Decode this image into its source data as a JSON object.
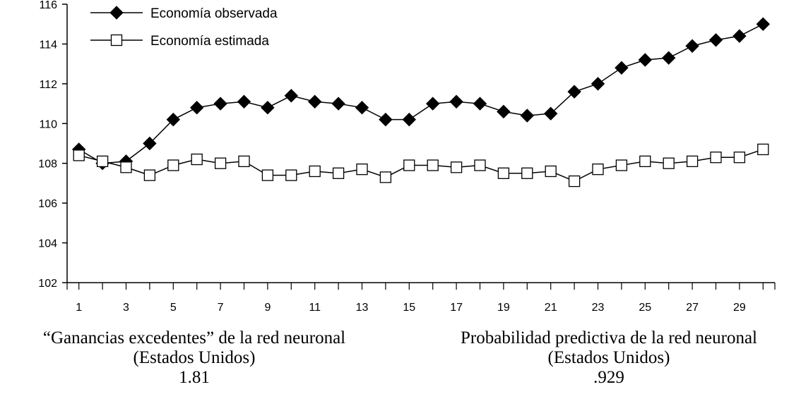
{
  "chart_data": {
    "type": "line",
    "x": [
      1,
      2,
      3,
      4,
      5,
      6,
      7,
      8,
      9,
      10,
      11,
      12,
      13,
      14,
      15,
      16,
      17,
      18,
      19,
      20,
      21,
      22,
      23,
      24,
      25,
      26,
      27,
      28,
      29,
      30
    ],
    "x_tick_labels": [
      "1",
      "3",
      "5",
      "7",
      "9",
      "11",
      "13",
      "15",
      "17",
      "19",
      "21",
      "23",
      "25",
      "27",
      "29"
    ],
    "y_tick_labels": [
      "102",
      "104",
      "106",
      "108",
      "110",
      "112",
      "114",
      "116"
    ],
    "ylim": [
      102,
      116
    ],
    "xlim": [
      0.5,
      30.5
    ],
    "grid": false,
    "legend_position": "top-left",
    "series": [
      {
        "name": "Economía observada",
        "marker": "filled-diamond",
        "values": [
          108.7,
          108.0,
          108.1,
          109.0,
          110.2,
          110.8,
          111.0,
          111.1,
          110.8,
          111.4,
          111.1,
          111.0,
          110.8,
          110.2,
          110.2,
          111.0,
          111.1,
          111.0,
          110.6,
          110.4,
          110.5,
          111.6,
          112.0,
          112.8,
          113.2,
          113.3,
          113.9,
          114.2,
          114.4,
          115.0
        ]
      },
      {
        "name": "Economía estimada",
        "marker": "open-square",
        "values": [
          108.4,
          108.1,
          107.8,
          107.4,
          107.9,
          108.2,
          108.0,
          108.1,
          107.4,
          107.4,
          107.6,
          107.5,
          107.7,
          107.3,
          107.9,
          107.9,
          107.8,
          107.9,
          107.5,
          107.5,
          107.6,
          107.1,
          107.7,
          107.9,
          108.1,
          108.0,
          108.1,
          108.3,
          108.3,
          108.7
        ]
      }
    ],
    "colors": {
      "line": "#000000",
      "marker_fill_open": "#ffffff"
    }
  },
  "captions": {
    "left": {
      "title": "“Ganancias excedentes” de la red neuronal",
      "subtitle": "(Estados Unidos)",
      "value": "1.81"
    },
    "right": {
      "title": "Probabilidad predictiva de la red neuronal",
      "subtitle": "(Estados Unidos)",
      "value": ".929"
    }
  }
}
